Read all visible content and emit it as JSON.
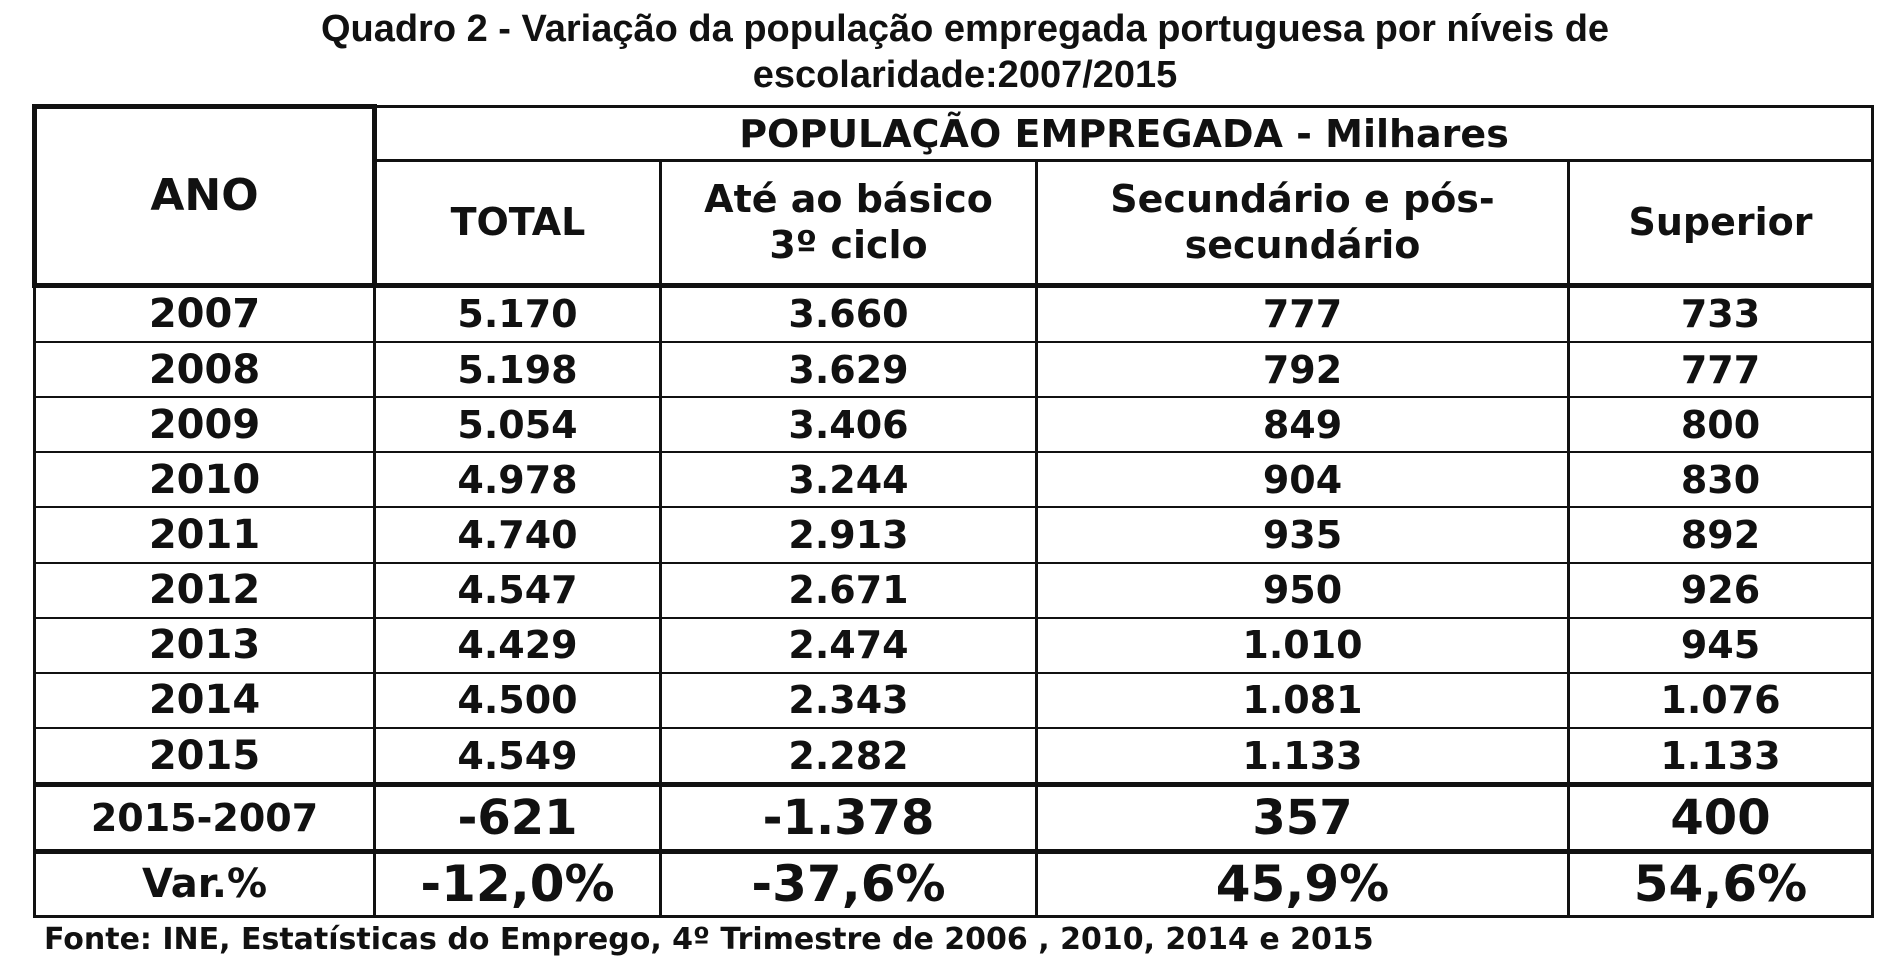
{
  "title_line1": "Quadro 2 - Variação da população empregada portuguesa por níveis de",
  "title_line2": "escolaridade:2007/2015",
  "table": {
    "row_header": "ANO",
    "group_header": "POPULAÇÃO EMPREGADA - Milhares",
    "columns": [
      {
        "line1": "TOTAL",
        "line2": ""
      },
      {
        "line1": "Até ao básico",
        "line2": "3º ciclo"
      },
      {
        "line1": "Secundário e pós-",
        "line2": "secundário"
      },
      {
        "line1": "Superior",
        "line2": ""
      }
    ],
    "rows": [
      {
        "year": "2007",
        "values": [
          "5.170",
          "3.660",
          "777",
          "733"
        ]
      },
      {
        "year": "2008",
        "values": [
          "5.198",
          "3.629",
          "792",
          "777"
        ]
      },
      {
        "year": "2009",
        "values": [
          "5.054",
          "3.406",
          "849",
          "800"
        ]
      },
      {
        "year": "2010",
        "values": [
          "4.978",
          "3.244",
          "904",
          "830"
        ]
      },
      {
        "year": "2011",
        "values": [
          "4.740",
          "2.913",
          "935",
          "892"
        ]
      },
      {
        "year": "2012",
        "values": [
          "4.547",
          "2.671",
          "950",
          "926"
        ]
      },
      {
        "year": "2013",
        "values": [
          "4.429",
          "2.474",
          "1.010",
          "945"
        ]
      },
      {
        "year": "2014",
        "values": [
          "4.500",
          "2.343",
          "1.081",
          "1.076"
        ]
      },
      {
        "year": "2015",
        "values": [
          "4.549",
          "2.282",
          "1.133",
          "1.133"
        ]
      }
    ],
    "diff_row": {
      "label": "2015-2007",
      "values": [
        "-621",
        "-1.378",
        "357",
        "400"
      ]
    },
    "var_row": {
      "label": "Var.%",
      "values": [
        "-12,0%",
        "-37,6%",
        "45,9%",
        "54,6%"
      ]
    }
  },
  "source": "Fonte: INE, Estatísticas do Emprego, 4º Trimestre de 2006 , 2010, 2014 e 2015"
}
